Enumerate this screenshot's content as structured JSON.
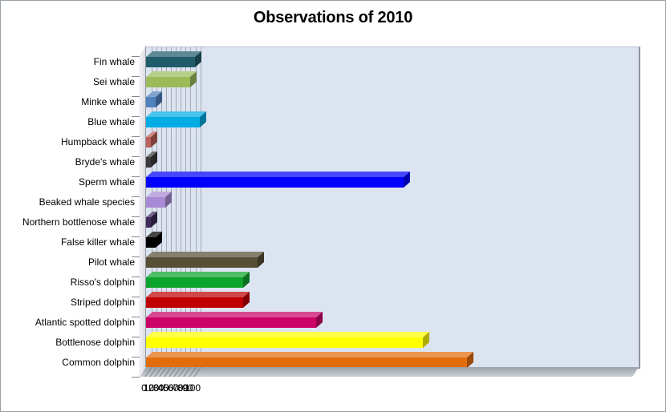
{
  "title": "Observations of 2010",
  "chart_data": {
    "type": "bar",
    "orientation": "horizontal",
    "style": "3d-excel",
    "title": "Observations of 2010",
    "categories": [
      "Fin whale",
      "Sei whale",
      "Minke whale",
      "Blue whale",
      "Humpback whale",
      "Bryde's whale",
      "Sperm whale",
      "Beaked whale species",
      "Northern bottlenose  whale",
      "False killer whale",
      "Pilot whale",
      "Risso's dolphin",
      "Striped dolphin",
      "Atlantic spotted dolphin",
      "Bottlenose dolphin",
      "Common dolphin"
    ],
    "values": [
      10,
      9,
      2,
      11,
      1,
      1,
      53,
      4,
      1,
      2,
      23,
      20,
      20,
      35,
      57,
      66
    ],
    "bar_colors": [
      "#1f5b6b",
      "#9bbb59",
      "#4f81bd",
      "#00ace4",
      "#bc6059",
      "#3b3b3b",
      "#0000ff",
      "#a88bd4",
      "#3e2a5b",
      "#000000",
      "#564f36",
      "#0ca42c",
      "#c00000",
      "#cb0368",
      "#ffff00",
      "#e36c0a"
    ],
    "xlabel": "",
    "ylabel": "",
    "xlim": [
      0,
      100
    ],
    "x_ticks": [
      0,
      10,
      20,
      30,
      40,
      50,
      60,
      70,
      80,
      90,
      100
    ],
    "grid": true,
    "legend": false,
    "colors": {
      "plot_bg": "#dce4f1",
      "gridline": "#a6a8b2",
      "wall_edge": "#8f939b",
      "floor_top": "#9aa0a8",
      "floor_bottom": "#ccd0d6",
      "axis_text": "#000000",
      "chart_border": "#9aa1a8",
      "background": "#ffffff"
    }
  }
}
